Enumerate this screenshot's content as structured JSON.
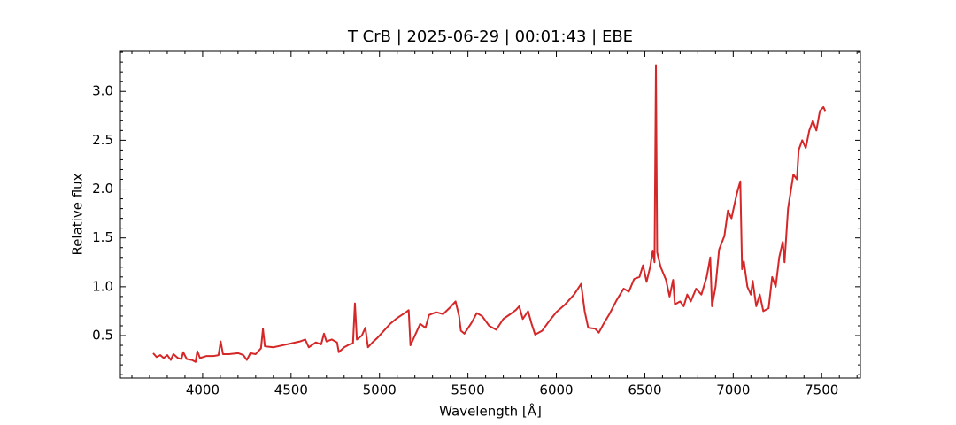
{
  "chart_data": {
    "type": "line",
    "title": "T CrB | 2025-06-29 | 00:01:43 | EBE",
    "x_label": "Wavelength [Å]",
    "y_label": "Relative flux",
    "xlim": [
      3535,
      7719
    ],
    "ylim": [
      0.065,
      3.41
    ],
    "xticks": [
      4000,
      4500,
      5000,
      5500,
      6000,
      6500,
      7000,
      7500
    ],
    "yticks": [
      0.5,
      1.0,
      1.5,
      2.0,
      2.5,
      3.0
    ],
    "xminorticks": [
      3600,
      3700,
      3800,
      3900,
      4100,
      4200,
      4300,
      4400,
      4600,
      4700,
      4800,
      4900,
      5100,
      5200,
      5300,
      5400,
      5600,
      5700,
      5800,
      5900,
      6100,
      6200,
      6300,
      6400,
      6600,
      6700,
      6800,
      6900,
      7100,
      7200,
      7300,
      7400,
      7600,
      7700
    ],
    "yminorticks": [
      0.1,
      0.2,
      0.3,
      0.4,
      0.6,
      0.7,
      0.8,
      0.9,
      1.1,
      1.2,
      1.3,
      1.4,
      1.6,
      1.7,
      1.8,
      1.9,
      2.1,
      2.2,
      2.3,
      2.4,
      2.6,
      2.7,
      2.8,
      2.9,
      3.1,
      3.2,
      3.3,
      3.4
    ],
    "grid": false,
    "series": [
      {
        "color": "#d62728",
        "x": [
          3720,
          3740,
          3760,
          3780,
          3800,
          3820,
          3835,
          3860,
          3880,
          3890,
          3910,
          3940,
          3960,
          3970,
          3985,
          4020,
          4060,
          4090,
          4102,
          4115,
          4150,
          4200,
          4230,
          4250,
          4270,
          4300,
          4330,
          4341,
          4352,
          4400,
          4450,
          4500,
          4550,
          4580,
          4600,
          4640,
          4670,
          4686,
          4700,
          4730,
          4760,
          4770,
          4800,
          4830,
          4850,
          4861,
          4872,
          4900,
          4920,
          4935,
          4960,
          4990,
          5015,
          5060,
          5100,
          5150,
          5165,
          5175,
          5200,
          5230,
          5260,
          5280,
          5320,
          5360,
          5400,
          5430,
          5450,
          5460,
          5480,
          5520,
          5550,
          5580,
          5620,
          5660,
          5700,
          5740,
          5770,
          5790,
          5810,
          5840,
          5860,
          5880,
          5920,
          5960,
          6000,
          6050,
          6100,
          6140,
          6160,
          6180,
          6220,
          6240,
          6270,
          6300,
          6340,
          6380,
          6410,
          6440,
          6470,
          6490,
          6510,
          6530,
          6545,
          6555,
          6563,
          6570,
          6590,
          6620,
          6640,
          6660,
          6670,
          6700,
          6720,
          6740,
          6760,
          6790,
          6820,
          6850,
          6870,
          6880,
          6900,
          6920,
          6950,
          6970,
          6990,
          7020,
          7040,
          7050,
          7060,
          7080,
          7100,
          7110,
          7130,
          7150,
          7170,
          7200,
          7220,
          7240,
          7260,
          7280,
          7290,
          7310,
          7340,
          7360,
          7370,
          7390,
          7410,
          7430,
          7450,
          7470,
          7490,
          7510,
          7520
        ],
        "values": [
          0.32,
          0.28,
          0.3,
          0.27,
          0.3,
          0.25,
          0.31,
          0.27,
          0.26,
          0.33,
          0.26,
          0.25,
          0.23,
          0.34,
          0.27,
          0.29,
          0.29,
          0.3,
          0.44,
          0.31,
          0.31,
          0.32,
          0.3,
          0.25,
          0.32,
          0.31,
          0.37,
          0.57,
          0.39,
          0.38,
          0.4,
          0.42,
          0.44,
          0.46,
          0.38,
          0.43,
          0.41,
          0.52,
          0.44,
          0.46,
          0.43,
          0.33,
          0.38,
          0.41,
          0.42,
          0.83,
          0.46,
          0.5,
          0.58,
          0.38,
          0.43,
          0.48,
          0.53,
          0.62,
          0.68,
          0.74,
          0.76,
          0.4,
          0.5,
          0.62,
          0.58,
          0.71,
          0.74,
          0.72,
          0.79,
          0.85,
          0.7,
          0.55,
          0.52,
          0.63,
          0.73,
          0.7,
          0.6,
          0.56,
          0.67,
          0.72,
          0.76,
          0.8,
          0.67,
          0.75,
          0.62,
          0.51,
          0.55,
          0.65,
          0.74,
          0.82,
          0.92,
          1.03,
          0.75,
          0.58,
          0.57,
          0.53,
          0.63,
          0.72,
          0.86,
          0.98,
          0.95,
          1.08,
          1.1,
          1.22,
          1.05,
          1.2,
          1.37,
          1.25,
          3.27,
          1.35,
          1.2,
          1.07,
          0.9,
          1.07,
          0.82,
          0.85,
          0.8,
          0.92,
          0.85,
          0.98,
          0.92,
          1.1,
          1.3,
          0.8,
          1.0,
          1.38,
          1.52,
          1.78,
          1.7,
          1.95,
          2.08,
          1.18,
          1.26,
          1.0,
          0.92,
          1.06,
          0.8,
          0.92,
          0.75,
          0.78,
          1.1,
          1.0,
          1.3,
          1.46,
          1.25,
          1.8,
          2.15,
          2.1,
          2.4,
          2.5,
          2.42,
          2.6,
          2.7,
          2.6,
          2.8,
          2.84,
          2.8
        ]
      }
    ]
  }
}
